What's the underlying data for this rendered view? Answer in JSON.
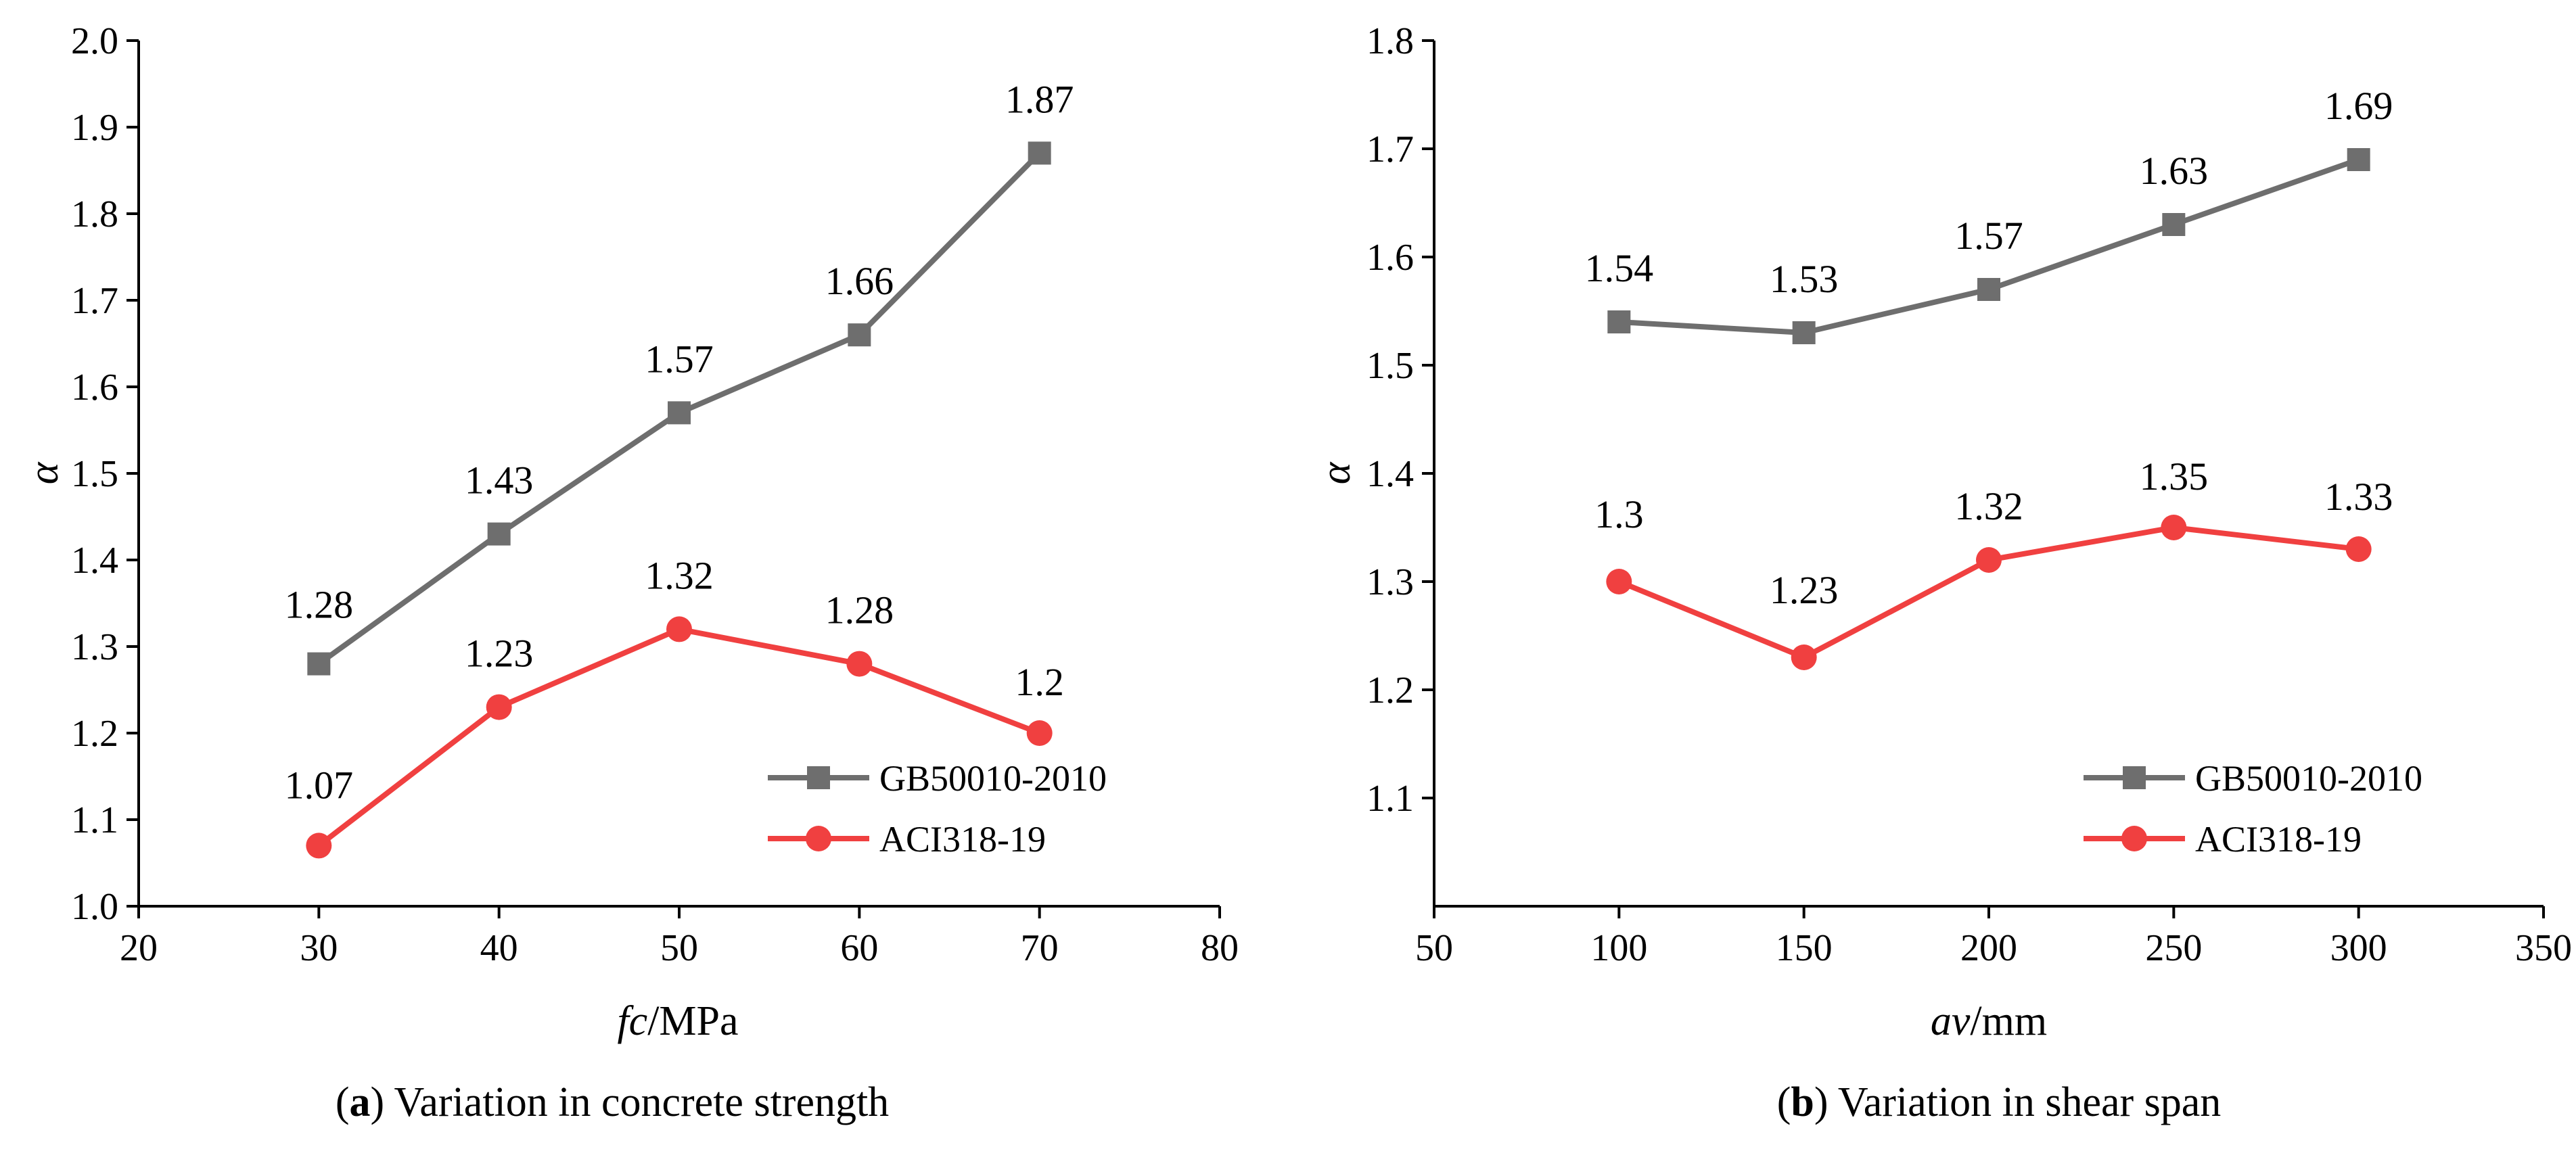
{
  "chart_data": [
    {
      "type": "line",
      "caption_letter": "a",
      "caption_text": " Variation in concrete strength",
      "xlabel_italic": "fc",
      "xlabel_unit": "/MPa",
      "ylabel": "α",
      "xlim": [
        20,
        80
      ],
      "ylim": [
        1.0,
        2.0
      ],
      "xticks": [
        20,
        30,
        40,
        50,
        60,
        70,
        80
      ],
      "xtick_labels": [
        "20",
        "30",
        "40",
        "50",
        "60",
        "70",
        "80"
      ],
      "yticks": [
        1.0,
        1.1,
        1.2,
        1.3,
        1.4,
        1.5,
        1.6,
        1.7,
        1.8,
        1.9,
        2.0
      ],
      "ytick_labels": [
        "1.0",
        "1.1",
        "1.2",
        "1.3",
        "1.4",
        "1.5",
        "1.6",
        "1.7",
        "1.8",
        "1.9",
        "2.0"
      ],
      "x": [
        30,
        40,
        50,
        60,
        70
      ],
      "series": [
        {
          "name": "GB50010-2010",
          "color": "#6e6e6e",
          "marker": "square",
          "values": [
            1.28,
            1.43,
            1.57,
            1.66,
            1.87
          ],
          "labels": [
            "1.28",
            "1.43",
            "1.57",
            "1.66",
            "1.87"
          ]
        },
        {
          "name": "ACI318-19",
          "color": "#f04040",
          "marker": "circle",
          "values": [
            1.07,
            1.23,
            1.32,
            1.28,
            1.2
          ],
          "labels": [
            "1.07",
            "1.23",
            "1.32",
            "1.28",
            "1.2"
          ]
        }
      ],
      "legend": "bottom-right"
    },
    {
      "type": "line",
      "caption_letter": "b",
      "caption_text": " Variation in shear span",
      "xlabel_italic": "av",
      "xlabel_unit": "/mm",
      "ylabel": "α",
      "xlim": [
        50,
        350
      ],
      "ylim": [
        1.0,
        1.8
      ],
      "xticks": [
        50,
        100,
        150,
        200,
        250,
        300,
        350
      ],
      "xtick_labels": [
        "50",
        "100",
        "150",
        "200",
        "250",
        "300",
        "350"
      ],
      "yticks": [
        1.1,
        1.2,
        1.3,
        1.4,
        1.5,
        1.6,
        1.7,
        1.8
      ],
      "ytick_labels": [
        "1.1",
        "1.2",
        "1.3",
        "1.4",
        "1.5",
        "1.6",
        "1.7",
        "1.8"
      ],
      "x": [
        100,
        150,
        200,
        250,
        300
      ],
      "series": [
        {
          "name": "GB50010-2010",
          "color": "#6e6e6e",
          "marker": "square",
          "values": [
            1.54,
            1.53,
            1.57,
            1.63,
            1.69
          ],
          "labels": [
            "1.54",
            "1.53",
            "1.57",
            "1.63",
            "1.69"
          ]
        },
        {
          "name": "ACI318-19",
          "color": "#f04040",
          "marker": "circle",
          "values": [
            1.3,
            1.23,
            1.32,
            1.35,
            1.33
          ],
          "labels": [
            "1.3",
            "1.23",
            "1.32",
            "1.35",
            "1.33"
          ]
        }
      ],
      "legend": "bottom-right"
    }
  ]
}
